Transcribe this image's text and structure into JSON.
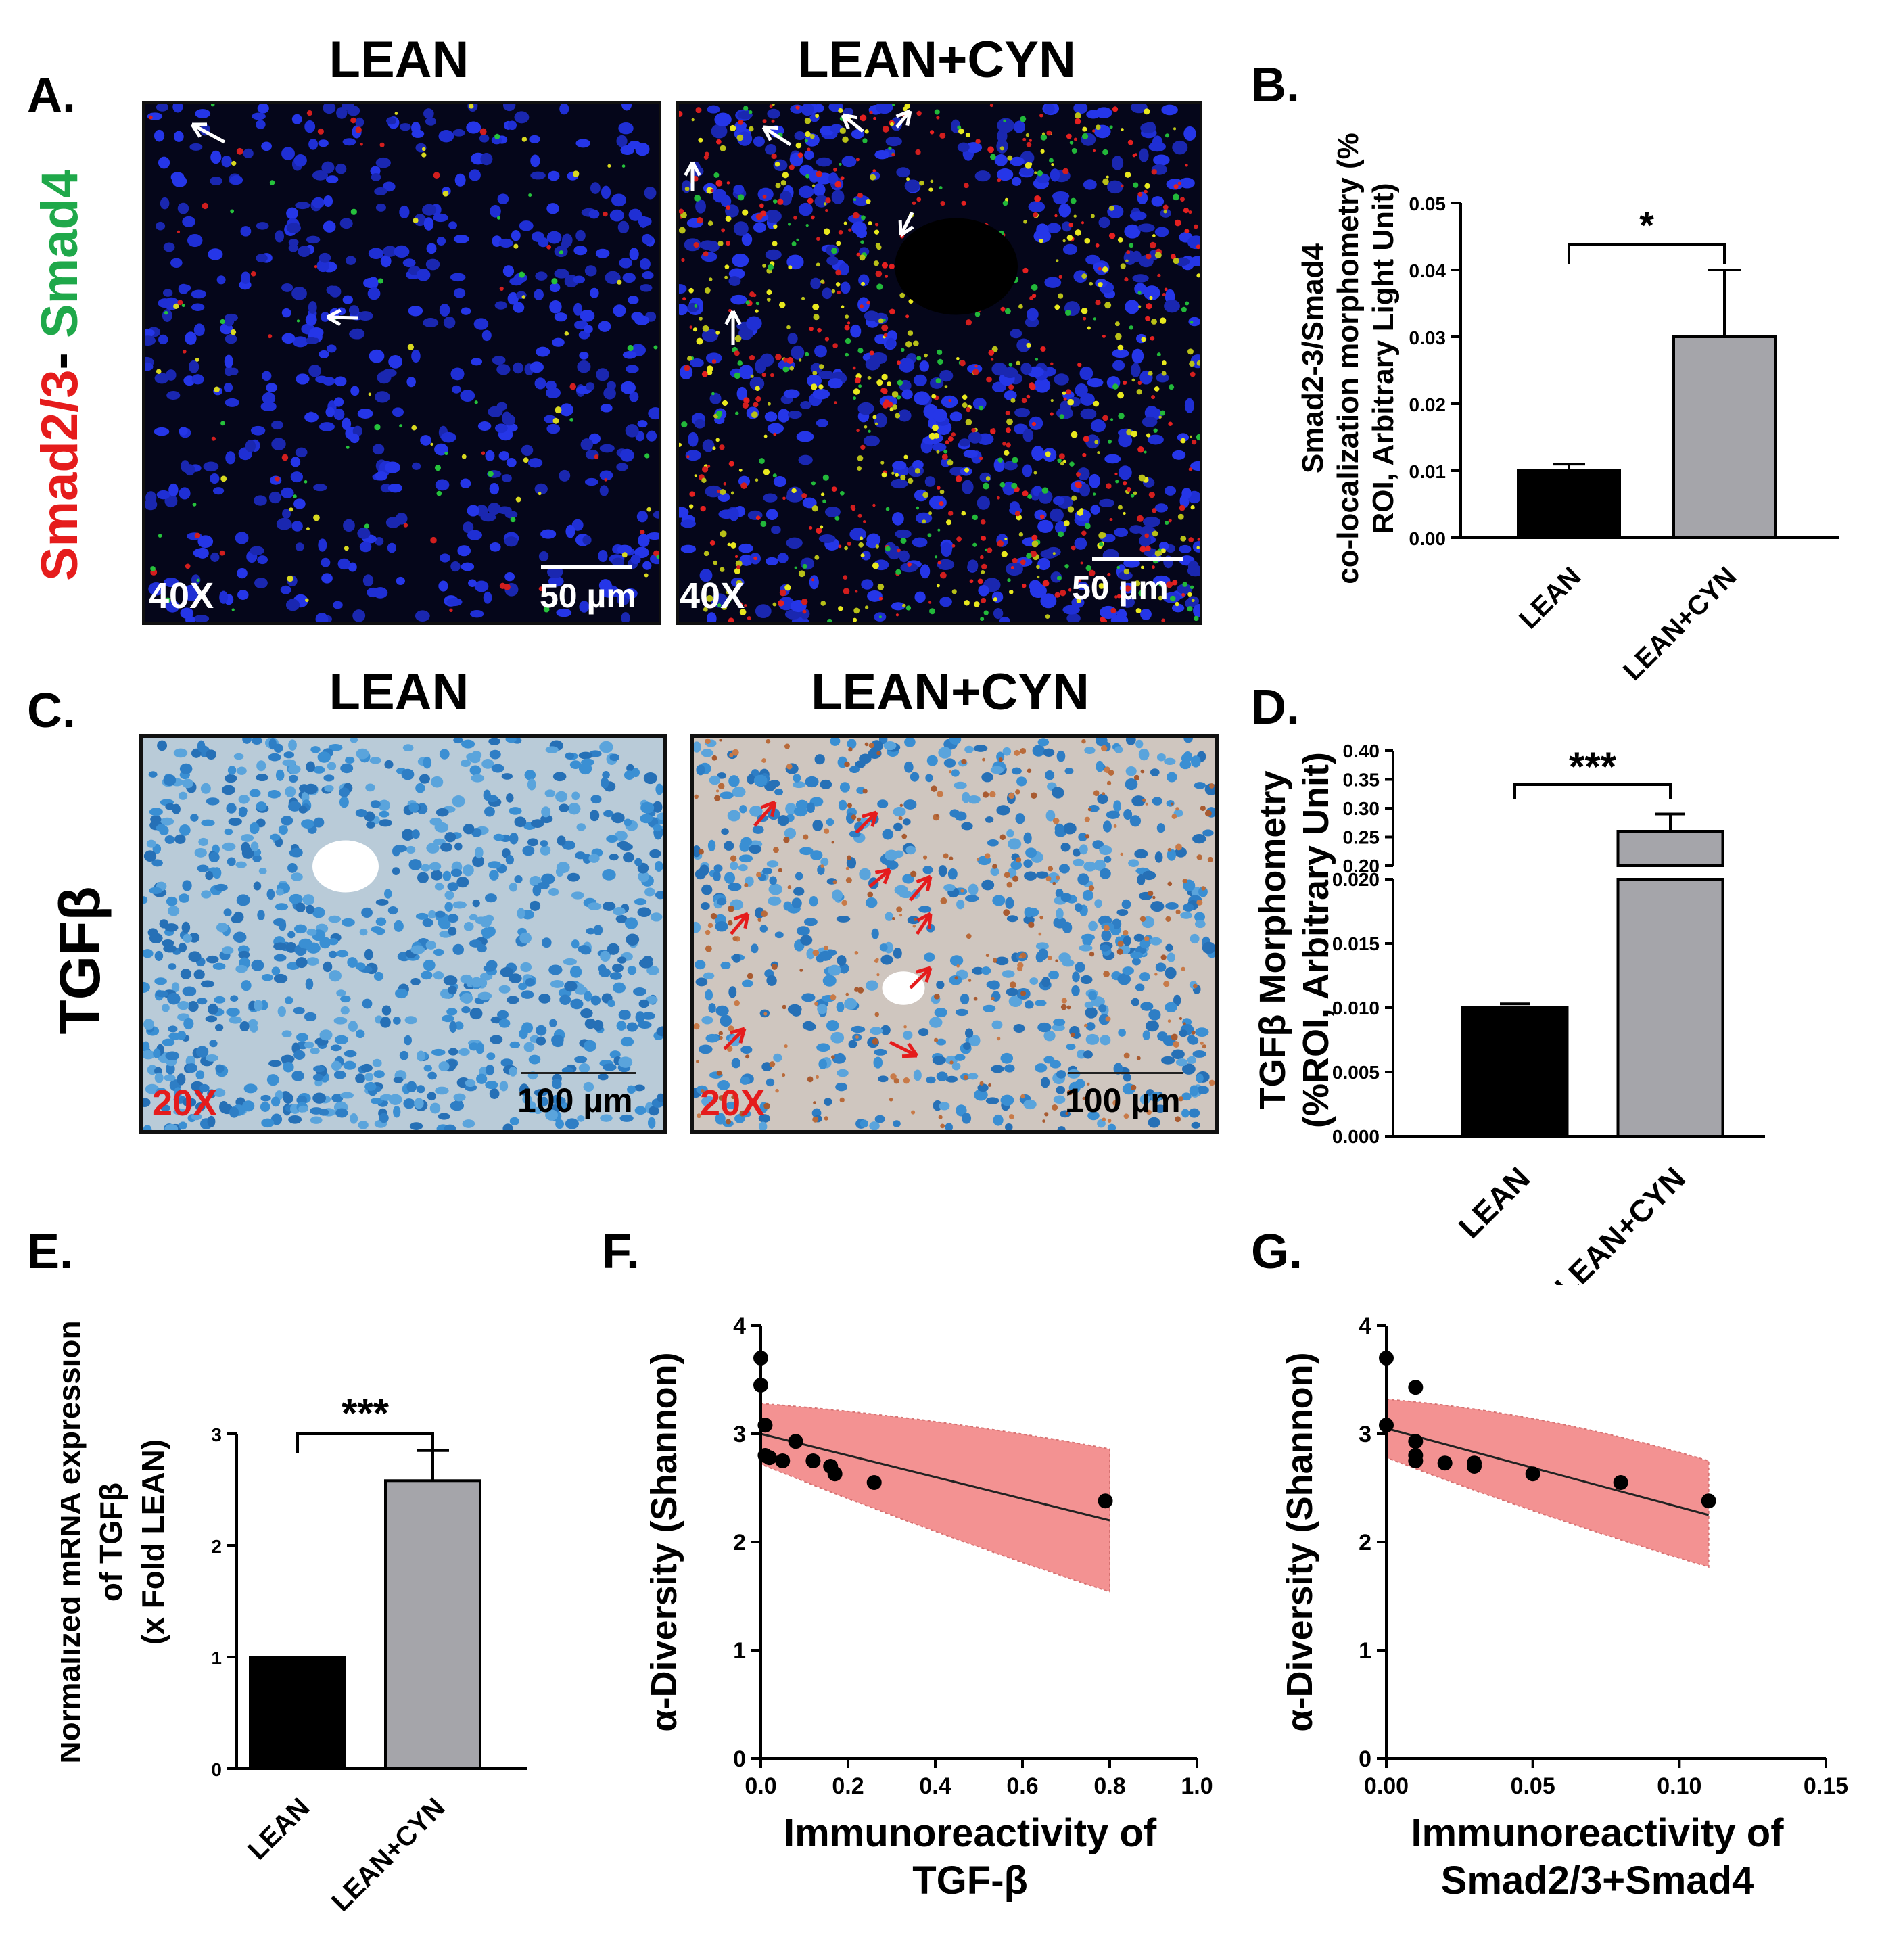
{
  "panel_letters": {
    "a": "A.",
    "b": "B.",
    "c": "C.",
    "d": "D.",
    "e": "E.",
    "f": "F.",
    "g": "G."
  },
  "panel_a": {
    "titles": [
      "LEAN",
      "LEAN+CYN"
    ],
    "stain_label_parts": [
      "Smad2/3",
      "- ",
      "Smad4"
    ],
    "magnification": "40X",
    "scale_bar": "50 µm"
  },
  "panel_c": {
    "titles": [
      "LEAN",
      "LEAN+CYN"
    ],
    "stain_label": "TGFβ",
    "magnification": "20X",
    "scale_bar": "100 µm"
  },
  "colors": {
    "lean_bar": "#000000",
    "cyn_bar": "#a5a5aa",
    "ci_band": "#f28080",
    "smad23": "#e51c1c",
    "smad4": "#1fa84a"
  },
  "chart_data": [
    {
      "id": "B",
      "type": "bar",
      "categories": [
        "LEAN",
        "LEAN+CYN"
      ],
      "values": [
        0.01,
        0.03
      ],
      "errors": [
        0.001,
        0.01
      ],
      "ylabel_lines": [
        "Smad2-3/Smad4",
        "co-localization morphometry (%",
        "ROI, Arbitrary Light Unit)"
      ],
      "ylim": [
        0,
        0.05
      ],
      "yticks": [
        "0.00",
        "0.01",
        "0.02",
        "0.03",
        "0.04",
        "0.05"
      ],
      "significance": "*"
    },
    {
      "id": "D",
      "type": "bar",
      "categories": [
        "LEAN",
        "LEAN+CYN"
      ],
      "values": [
        0.01,
        0.26
      ],
      "errors": [
        0.0003,
        0.03
      ],
      "ylabel_lines": [
        "TGFβ Morphometry",
        "(%ROI, Arbitrary Unit)"
      ],
      "ylim_lower": [
        0,
        0.02
      ],
      "ylim_upper": [
        0.2,
        0.4
      ],
      "yticks_lower": [
        "0.000",
        "0.005",
        "0.010",
        "0.015",
        "0.020"
      ],
      "yticks_upper": [
        "0.20",
        "0.25",
        "0.30",
        "0.35",
        "0.40"
      ],
      "significance": "***"
    },
    {
      "id": "E",
      "type": "bar",
      "categories": [
        "LEAN",
        "LEAN+CYN"
      ],
      "values": [
        1.0,
        2.58
      ],
      "errors": [
        0,
        0.27
      ],
      "ylabel_lines": [
        "Normalized mRNA expression",
        "of TGFβ",
        "(x Fold LEAN)"
      ],
      "ylim": [
        0,
        3
      ],
      "yticks": [
        "0",
        "1",
        "2",
        "3"
      ],
      "significance": "***"
    },
    {
      "id": "F",
      "type": "scatter",
      "x": [
        0.0,
        0.0,
        0.01,
        0.01,
        0.02,
        0.05,
        0.08,
        0.12,
        0.16,
        0.17,
        0.26,
        0.79
      ],
      "y": [
        3.7,
        3.45,
        3.08,
        2.8,
        2.78,
        2.75,
        2.93,
        2.75,
        2.7,
        2.63,
        2.55,
        2.38
      ],
      "fit": {
        "x": [
          0.0,
          0.8
        ],
        "y": [
          3.0,
          2.2
        ]
      },
      "ci_upper": {
        "x": [
          0.0,
          0.8
        ],
        "y": [
          3.28,
          2.86
        ]
      },
      "ci_lower": {
        "x": [
          0.0,
          0.8
        ],
        "y": [
          2.72,
          1.54
        ]
      },
      "xlabel_lines": [
        "Immunoreactivity of",
        "TGF-β"
      ],
      "ylabel": "α-Diversity (Shannon)",
      "xlim": [
        0,
        1.0
      ],
      "ylim": [
        0,
        4
      ],
      "xticks": [
        "0.0",
        "0.2",
        "0.4",
        "0.6",
        "0.8",
        "1.0"
      ],
      "yticks": [
        "0",
        "1",
        "2",
        "3",
        "4"
      ]
    },
    {
      "id": "G",
      "type": "scatter",
      "x": [
        0.0,
        0.0,
        0.01,
        0.01,
        0.01,
        0.01,
        0.02,
        0.03,
        0.03,
        0.05,
        0.08,
        0.11
      ],
      "y": [
        3.7,
        3.08,
        3.43,
        2.93,
        2.8,
        2.75,
        2.73,
        2.7,
        2.73,
        2.63,
        2.55,
        2.38
      ],
      "fit": {
        "x": [
          0.0,
          0.11
        ],
        "y": [
          3.05,
          2.25
        ]
      },
      "ci_upper": {
        "x": [
          0.0,
          0.11
        ],
        "y": [
          3.32,
          2.75
        ]
      },
      "ci_lower": {
        "x": [
          0.0,
          0.11
        ],
        "y": [
          2.78,
          1.77
        ]
      },
      "xlabel_lines": [
        "Immunoreactivity of",
        "Smad2/3+Smad4"
      ],
      "ylabel": "α-Diversity (Shannon)",
      "xlim": [
        0,
        0.15
      ],
      "ylim": [
        0,
        4
      ],
      "xticks": [
        "0.00",
        "0.05",
        "0.10",
        "0.15"
      ],
      "yticks": [
        "0",
        "1",
        "2",
        "3",
        "4"
      ]
    }
  ]
}
